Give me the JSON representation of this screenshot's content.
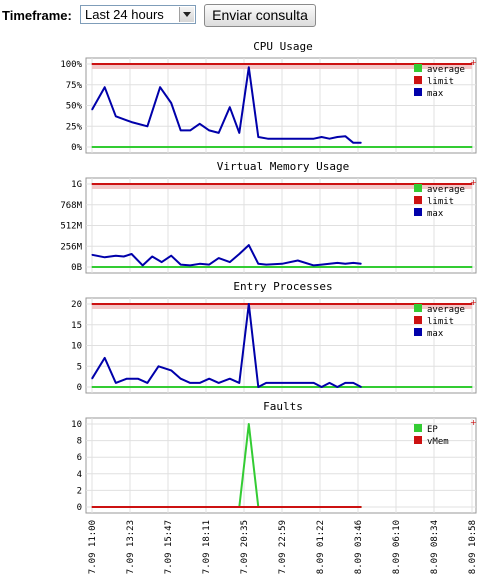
{
  "toolbar": {
    "timeframe_label": "Timeframe:",
    "timeframe_selected": "Last 24 hours",
    "submit_label": "Enviar consulta"
  },
  "x_axis": {
    "tick_labels": [
      "7.09 11:00",
      "7.09 13:23",
      "7.09 15:47",
      "7.09 18:11",
      "7.09 20:35",
      "7.09 22:59",
      "8.09 01:22",
      "8.09 03:46",
      "8.09 06:10",
      "8.09 08:34",
      "8.09 10:58"
    ]
  },
  "colors": {
    "average": "#33cc33",
    "limit": "#cc1111",
    "max": "#0000aa",
    "ep": "#33cc33",
    "vmem": "#cc1111",
    "grid": "#e0e0e0",
    "frame": "#999999"
  },
  "chart_data": [
    {
      "type": "line",
      "title": "CPU Usage",
      "ylim": [
        0,
        100
      ],
      "yticks": [
        0,
        25,
        50,
        75,
        100
      ],
      "ytick_labels": [
        "0%",
        "25%",
        "50%",
        "75%",
        "100%"
      ],
      "legend": [
        "average",
        "limit",
        "max"
      ],
      "series": [
        {
          "name": "average",
          "x": [
            0,
            24
          ],
          "values": [
            0,
            0
          ]
        },
        {
          "name": "limit",
          "x": [
            0,
            24
          ],
          "values": [
            100,
            100
          ]
        },
        {
          "name": "max",
          "x": [
            0,
            0.8,
            1.5,
            2.5,
            3.5,
            4.3,
            5.0,
            5.6,
            6.2,
            6.8,
            7.4,
            8.0,
            8.7,
            9.3,
            9.9,
            10.5,
            11.1,
            12,
            13,
            14,
            14.5,
            15,
            15.5,
            16,
            16.5,
            17
          ],
          "values": [
            45,
            72,
            37,
            30,
            25,
            72,
            53,
            20,
            20,
            28,
            20,
            17,
            48,
            17,
            96,
            12,
            10,
            10,
            10,
            10,
            12,
            10,
            12,
            13,
            5,
            5
          ]
        }
      ]
    },
    {
      "type": "line",
      "title": "Virtual Memory Usage",
      "ylim": [
        0,
        1024
      ],
      "yticks": [
        0,
        256,
        512,
        768,
        1024
      ],
      "ytick_labels": [
        "0B",
        "256M",
        "512M",
        "768M",
        "1G"
      ],
      "legend": [
        "average",
        "limit",
        "max"
      ],
      "series": [
        {
          "name": "average",
          "x": [
            0,
            24
          ],
          "values": [
            0,
            0
          ]
        },
        {
          "name": "limit",
          "x": [
            0,
            24
          ],
          "values": [
            1024,
            1024
          ]
        },
        {
          "name": "max",
          "x": [
            0,
            0.8,
            1.5,
            2.0,
            2.5,
            3.2,
            3.8,
            4.4,
            5.0,
            5.6,
            6.2,
            6.8,
            7.4,
            8.0,
            8.7,
            9.3,
            9.9,
            10.5,
            11,
            12,
            13,
            14,
            14.5,
            15,
            15.5,
            16,
            16.5,
            17
          ],
          "values": [
            150,
            120,
            140,
            130,
            160,
            20,
            130,
            60,
            140,
            30,
            20,
            40,
            30,
            110,
            60,
            160,
            270,
            40,
            30,
            40,
            80,
            20,
            30,
            40,
            50,
            40,
            50,
            40
          ]
        }
      ]
    },
    {
      "type": "line",
      "title": "Entry Processes",
      "ylim": [
        0,
        20
      ],
      "yticks": [
        0,
        5,
        10,
        15,
        20
      ],
      "ytick_labels": [
        "0",
        "5",
        "10",
        "15",
        "20"
      ],
      "legend": [
        "average",
        "limit",
        "max"
      ],
      "series": [
        {
          "name": "average",
          "x": [
            0,
            24
          ],
          "values": [
            0,
            0
          ]
        },
        {
          "name": "limit",
          "x": [
            0,
            24
          ],
          "values": [
            20,
            20
          ]
        },
        {
          "name": "max",
          "x": [
            0,
            0.8,
            1.5,
            2.2,
            2.9,
            3.5,
            4.2,
            5.0,
            5.6,
            6.2,
            6.8,
            7.4,
            8.0,
            8.7,
            9.3,
            9.9,
            10.5,
            11,
            12,
            13,
            14,
            14.5,
            15,
            15.5,
            16,
            16.5,
            17
          ],
          "values": [
            2,
            7,
            1,
            2,
            2,
            1,
            5,
            4,
            2,
            1,
            1,
            2,
            1,
            2,
            1,
            20,
            0,
            1,
            1,
            1,
            1,
            0,
            1,
            0,
            1,
            1,
            0
          ]
        }
      ]
    },
    {
      "type": "line",
      "title": "Faults",
      "ylim": [
        0,
        10
      ],
      "yticks": [
        0,
        2,
        4,
        6,
        8,
        10
      ],
      "ytick_labels": [
        "0",
        "2",
        "4",
        "6",
        "8",
        "10"
      ],
      "legend": [
        "EP",
        "vMem"
      ],
      "series": [
        {
          "name": "EP",
          "x": [
            0,
            9.3,
            9.9,
            10.5,
            17
          ],
          "values": [
            0,
            0,
            10,
            0,
            0
          ]
        },
        {
          "name": "vMem",
          "x": [
            0,
            17
          ],
          "values": [
            0,
            0
          ]
        }
      ]
    }
  ]
}
